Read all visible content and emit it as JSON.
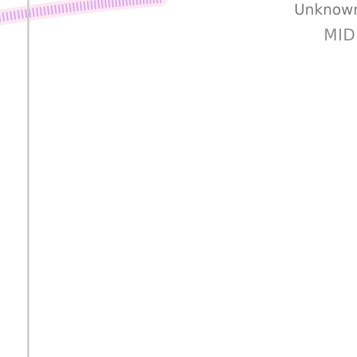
{
  "device": {
    "name": "Unknown",
    "signal_label": "MID"
  },
  "signal_arc": {
    "icon": "signal-strength-arc",
    "tick_color": "#d9a6f2",
    "glow_color": "#fde6f1"
  },
  "colors": {
    "background": "#ffffff",
    "rule": "#cfcfcf",
    "text_primary": "#7a7a7a",
    "text_secondary": "#8e8e8e"
  }
}
